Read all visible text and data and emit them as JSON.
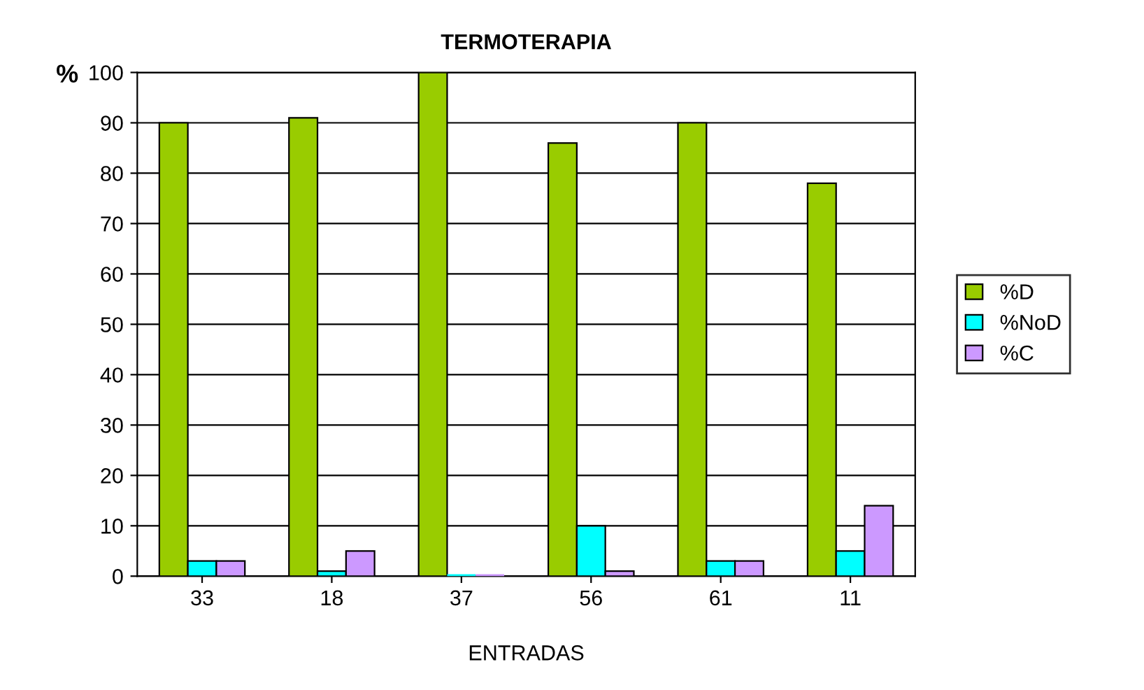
{
  "chart_data": {
    "type": "bar",
    "title": "TERMOTERAPIA",
    "xlabel": "ENTRADAS",
    "ylabel": "%",
    "categories": [
      "33",
      "18",
      "37",
      "56",
      "61",
      "11"
    ],
    "series": [
      {
        "name": "%D",
        "color": "#99cc00",
        "values": [
          90,
          91,
          100,
          86,
          90,
          78
        ]
      },
      {
        "name": "%NoD",
        "color": "#00ffff",
        "values": [
          3,
          1,
          0,
          10,
          3,
          5
        ]
      },
      {
        "name": "%C",
        "color": "#cc99ff",
        "values": [
          3,
          5,
          0,
          1,
          3,
          14
        ]
      }
    ],
    "ylim": [
      0,
      100
    ],
    "yticks": [
      0,
      10,
      20,
      30,
      40,
      50,
      60,
      70,
      80,
      90,
      100
    ],
    "grid": "y",
    "legend": "right"
  }
}
